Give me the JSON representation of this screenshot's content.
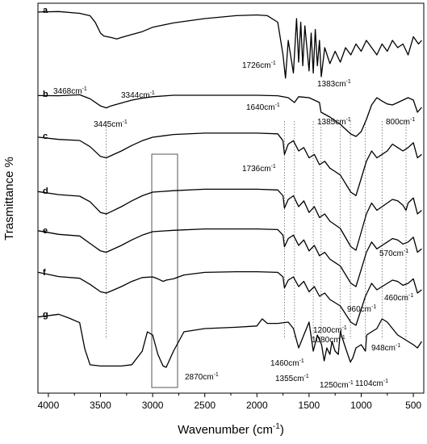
{
  "chart_data": {
    "type": "line",
    "title": "",
    "xlabel": "Wavenumber (cm",
    "xlabel_sup": "-1",
    "xlabel_end": ")",
    "ylabel": "Trasmittance %",
    "xlim": [
      4100,
      400
    ],
    "x_reversed": true,
    "x_ticks": [
      "4000",
      "3500",
      "3000",
      "2500",
      "2000",
      "1500",
      "1000",
      "500"
    ],
    "x_tick_values": [
      4000,
      3500,
      3000,
      2500,
      2000,
      1500,
      1000,
      500
    ],
    "y_ticks": [],
    "grid": false,
    "legend": "none",
    "series": [
      {
        "name": "a",
        "x": [
          4100,
          3900,
          3700,
          3600,
          3550,
          3500,
          3468,
          3400,
          3344,
          3300,
          3200,
          3100,
          3000,
          2800,
          2500,
          2200,
          2000,
          1900,
          1800,
          1750,
          1726,
          1700,
          1650,
          1620,
          1600,
          1580,
          1560,
          1540,
          1500,
          1480,
          1460,
          1440,
          1420,
          1400,
          1383,
          1350,
          1300,
          1250,
          1200,
          1150,
          1100,
          1050,
          1000,
          950,
          900,
          850,
          800,
          750,
          700,
          650,
          600,
          550,
          500,
          450,
          420
        ],
        "y": [
          0.0,
          0.0,
          0.01,
          0.06,
          0.17,
          0.3,
          0.34,
          0.36,
          0.38,
          0.36,
          0.32,
          0.28,
          0.22,
          0.16,
          0.1,
          0.06,
          0.05,
          0.06,
          0.15,
          0.6,
          0.92,
          0.4,
          0.85,
          0.1,
          0.7,
          0.15,
          0.75,
          0.2,
          0.82,
          0.3,
          0.85,
          0.25,
          0.75,
          0.4,
          0.9,
          0.5,
          0.72,
          0.55,
          0.7,
          0.5,
          0.6,
          0.45,
          0.55,
          0.4,
          0.5,
          0.6,
          0.45,
          0.55,
          0.4,
          0.5,
          0.45,
          0.6,
          0.35,
          0.45,
          0.4
        ]
      },
      {
        "name": "b",
        "x": [
          4100,
          3900,
          3700,
          3600,
          3500,
          3445,
          3400,
          3300,
          3200,
          3100,
          3000,
          2800,
          2500,
          2200,
          2000,
          1800,
          1700,
          1640,
          1600,
          1500,
          1450,
          1400,
          1385,
          1300,
          1200,
          1100,
          1050,
          1000,
          950,
          900,
          850,
          800,
          750,
          700,
          650,
          600,
          550,
          500,
          460,
          420
        ],
        "y": [
          0.0,
          0.0,
          0.02,
          0.08,
          0.22,
          0.26,
          0.22,
          0.16,
          0.1,
          0.06,
          0.03,
          0.0,
          0.0,
          0.0,
          0.0,
          0.01,
          0.05,
          0.15,
          0.03,
          0.05,
          0.1,
          0.15,
          0.35,
          0.45,
          0.6,
          0.8,
          0.85,
          0.75,
          0.5,
          0.2,
          0.05,
          0.12,
          0.18,
          0.2,
          0.15,
          0.1,
          0.05,
          0.1,
          0.35,
          0.25
        ]
      },
      {
        "name": "c",
        "x": [
          4100,
          3900,
          3700,
          3600,
          3500,
          3445,
          3400,
          3300,
          3200,
          3100,
          3000,
          2900,
          2800,
          2500,
          2200,
          2000,
          1800,
          1750,
          1736,
          1700,
          1650,
          1600,
          1550,
          1500,
          1450,
          1400,
          1350,
          1300,
          1250,
          1200,
          1100,
          1050,
          1000,
          950,
          900,
          850,
          800,
          750,
          700,
          650,
          600,
          550,
          500,
          460,
          420
        ],
        "y": [
          0.0,
          0.02,
          0.06,
          0.15,
          0.28,
          0.3,
          0.27,
          0.2,
          0.12,
          0.05,
          0.0,
          -0.02,
          -0.04,
          -0.06,
          -0.06,
          -0.06,
          -0.05,
          0.05,
          0.25,
          0.1,
          0.05,
          0.2,
          0.15,
          0.3,
          0.25,
          0.4,
          0.35,
          0.45,
          0.5,
          0.55,
          0.8,
          0.85,
          0.6,
          0.35,
          0.2,
          0.3,
          0.25,
          0.2,
          0.1,
          0.15,
          0.2,
          0.15,
          0.08,
          0.3,
          0.25
        ]
      },
      {
        "name": "d",
        "x": [
          4100,
          3900,
          3700,
          3600,
          3500,
          3445,
          3400,
          3300,
          3200,
          3100,
          3000,
          2900,
          2800,
          2500,
          2200,
          2000,
          1800,
          1750,
          1736,
          1700,
          1650,
          1600,
          1550,
          1500,
          1450,
          1400,
          1350,
          1300,
          1250,
          1200,
          1100,
          1050,
          1000,
          950,
          900,
          850,
          800,
          750,
          700,
          650,
          600,
          570,
          550,
          500,
          460,
          420
        ],
        "y": [
          0.0,
          0.02,
          0.06,
          0.15,
          0.28,
          0.3,
          0.27,
          0.2,
          0.12,
          0.05,
          0.0,
          -0.01,
          -0.02,
          -0.04,
          -0.04,
          -0.04,
          -0.03,
          0.05,
          0.22,
          0.1,
          0.05,
          0.2,
          0.12,
          0.28,
          0.2,
          0.35,
          0.3,
          0.4,
          0.45,
          0.5,
          0.75,
          0.8,
          0.55,
          0.3,
          0.15,
          0.25,
          0.2,
          0.15,
          0.1,
          0.12,
          0.18,
          0.25,
          0.15,
          0.08,
          0.3,
          0.25
        ]
      },
      {
        "name": "e",
        "x": [
          4100,
          3900,
          3700,
          3600,
          3500,
          3445,
          3400,
          3300,
          3200,
          3100,
          3000,
          2900,
          2800,
          2500,
          2200,
          2000,
          1800,
          1750,
          1736,
          1700,
          1650,
          1600,
          1550,
          1500,
          1450,
          1400,
          1350,
          1300,
          1250,
          1200,
          1100,
          1050,
          1000,
          950,
          900,
          850,
          800,
          750,
          700,
          650,
          600,
          550,
          500,
          460,
          420
        ],
        "y": [
          0.0,
          0.02,
          0.06,
          0.15,
          0.28,
          0.3,
          0.27,
          0.2,
          0.12,
          0.05,
          0.0,
          -0.01,
          -0.02,
          -0.04,
          -0.04,
          -0.04,
          -0.03,
          0.05,
          0.22,
          0.1,
          0.05,
          0.2,
          0.12,
          0.28,
          0.2,
          0.35,
          0.3,
          0.4,
          0.45,
          0.5,
          0.75,
          0.8,
          0.55,
          0.3,
          0.15,
          0.25,
          0.2,
          0.15,
          0.1,
          0.12,
          0.18,
          0.15,
          0.08,
          0.3,
          0.25
        ]
      },
      {
        "name": "f",
        "x": [
          4100,
          3900,
          3700,
          3600,
          3500,
          3445,
          3400,
          3300,
          3200,
          3100,
          3000,
          2950,
          2900,
          2870,
          2800,
          2700,
          2500,
          2200,
          2000,
          1800,
          1750,
          1736,
          1700,
          1650,
          1600,
          1550,
          1500,
          1450,
          1400,
          1350,
          1300,
          1250,
          1200,
          1100,
          1050,
          1000,
          960,
          900,
          850,
          800,
          750,
          700,
          650,
          600,
          550,
          500,
          460,
          420
        ],
        "y": [
          0.0,
          0.02,
          0.06,
          0.15,
          0.28,
          0.3,
          0.27,
          0.2,
          0.12,
          0.06,
          0.05,
          0.08,
          0.12,
          0.1,
          0.08,
          0.02,
          -0.02,
          -0.03,
          -0.03,
          -0.02,
          0.05,
          0.22,
          0.1,
          0.05,
          0.2,
          0.12,
          0.28,
          0.2,
          0.35,
          0.3,
          0.4,
          0.45,
          0.5,
          0.75,
          0.8,
          0.55,
          0.35,
          0.15,
          0.25,
          0.2,
          0.15,
          0.1,
          0.12,
          0.18,
          0.15,
          0.08,
          0.3,
          0.25
        ]
      },
      {
        "name": "g",
        "x": [
          4100,
          3900,
          3800,
          3700,
          3650,
          3600,
          3500,
          3400,
          3300,
          3200,
          3100,
          3050,
          3000,
          2950,
          2900,
          2870,
          2800,
          2700,
          2500,
          2200,
          2000,
          1950,
          1900,
          1800,
          1700,
          1650,
          1600,
          1550,
          1500,
          1460,
          1420,
          1380,
          1355,
          1330,
          1300,
          1280,
          1250,
          1220,
          1200,
          1150,
          1104,
          1080,
          1050,
          1000,
          960,
          948,
          900,
          850,
          800,
          750,
          700,
          650,
          600,
          550,
          500,
          460,
          420
        ],
        "y": [
          0.0,
          0.0,
          0.02,
          0.1,
          0.5,
          0.75,
          0.78,
          0.78,
          0.78,
          0.76,
          0.55,
          0.25,
          0.3,
          0.6,
          0.78,
          0.8,
          0.55,
          0.25,
          0.2,
          0.18,
          0.16,
          0.05,
          0.12,
          0.12,
          0.1,
          0.2,
          0.5,
          0.3,
          0.1,
          0.55,
          0.3,
          0.45,
          0.7,
          0.5,
          0.6,
          0.4,
          0.55,
          0.6,
          0.25,
          0.5,
          0.72,
          0.65,
          0.5,
          0.45,
          0.55,
          0.3,
          0.25,
          0.2,
          0.05,
          0.1,
          0.2,
          0.3,
          0.35,
          0.4,
          0.45,
          0.5,
          0.4
        ]
      }
    ],
    "annotations": [
      {
        "text": "3468cm",
        "sup": "-1"
      },
      {
        "text": "3344cm",
        "sup": "-1"
      },
      {
        "text": "1726cm",
        "sup": "-1"
      },
      {
        "text": "1383cm",
        "sup": "-1"
      },
      {
        "text": "1640cm",
        "sup": "-1"
      },
      {
        "text": "1385cm",
        "sup": "-1"
      },
      {
        "text": "800cm",
        "sup": "-1"
      },
      {
        "text": "3445cm",
        "sup": "-1"
      },
      {
        "text": "1736cm",
        "sup": "-1"
      },
      {
        "text": "570cm",
        "sup": "-1"
      },
      {
        "text": "460cm",
        "sup": "-1"
      },
      {
        "text": "960cm",
        "sup": "-1"
      },
      {
        "text": "1200cm",
        "sup": "-1"
      },
      {
        "text": "1080cm",
        "sup": "-1"
      },
      {
        "text": "948cm",
        "sup": "-1"
      },
      {
        "text": "2870cm",
        "sup": "-1"
      },
      {
        "text": "1460cm",
        "sup": "-1"
      },
      {
        "text": "1355cm",
        "sup": "-1"
      },
      {
        "text": "1250cm",
        "sup": "-1"
      },
      {
        "text": "1104cm",
        "sup": "-1"
      }
    ],
    "reference_lines_wavenumber": [
      3445,
      1736,
      1640,
      1460,
      1385,
      1200,
      1104,
      960,
      800,
      570
    ]
  }
}
